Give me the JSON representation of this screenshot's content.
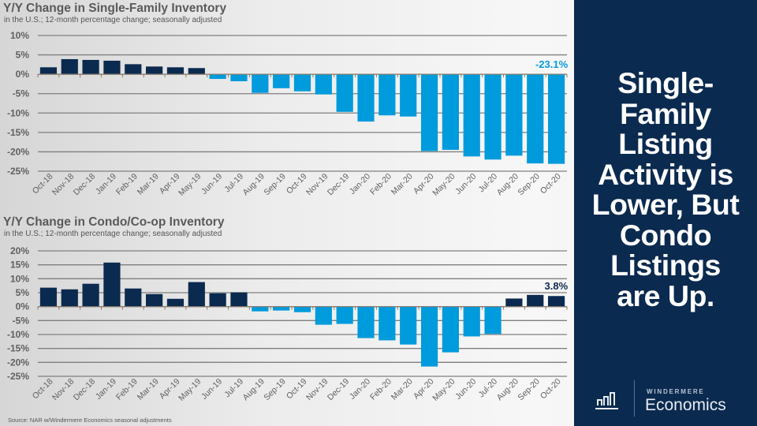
{
  "slide": {
    "headline": [
      "Single-",
      "Family",
      "Listing",
      "Activity is",
      "Lower, But",
      "Condo",
      "Listings",
      "are Up."
    ],
    "source": "Source: NAR w/Windermere Economics seasonal adjustments",
    "logo": {
      "brand": "WINDERMERE",
      "name": "Economics",
      "icon": "bar-chart-icon"
    },
    "colors": {
      "positive_bar": "#0b2a4f",
      "negative_bar": "#009bdc",
      "panel_bg": "#0b2a4f",
      "gridline": "#7f7f7f",
      "title_text": "#5a5a5a"
    }
  },
  "chart_data": [
    {
      "type": "bar",
      "title": "Y/Y Change in Single-Family Inventory",
      "subtitle": "in the U.S.; 12-month percentage change; seasonally adjusted",
      "xlabel": "",
      "ylabel": "",
      "ylim": [
        -25,
        10
      ],
      "yticks": [
        10,
        5,
        0,
        -5,
        -10,
        -15,
        -20,
        -25
      ],
      "ytick_labels": [
        "10%",
        "5%",
        "0%",
        "-5%",
        "-10%",
        "-15%",
        "-20%",
        "-25%"
      ],
      "grid": true,
      "categories": [
        "Oct-18",
        "Nov-18",
        "Dec-18",
        "Jan-19",
        "Feb-19",
        "Mar-19",
        "Apr-19",
        "May-19",
        "Jun-19",
        "Jul-19",
        "Aug-19",
        "Sep-19",
        "Oct-19",
        "Nov-19",
        "Dec-19",
        "Jan-20",
        "Feb-20",
        "Mar-20",
        "Apr-20",
        "May-20",
        "Jun-20",
        "Jul-20",
        "Aug-20",
        "Sep-20",
        "Oct-20"
      ],
      "values": [
        1.8,
        3.9,
        3.7,
        3.5,
        2.6,
        2.0,
        1.8,
        1.6,
        -1.2,
        -1.8,
        -4.8,
        -3.6,
        -4.4,
        -5.2,
        -9.7,
        -12.2,
        -10.6,
        -10.9,
        -19.8,
        -19.5,
        -21.2,
        -22.0,
        -21.0,
        -23.0,
        -23.1
      ],
      "annotation": {
        "category": "Oct-20",
        "text": "-23.1%",
        "color": "#009bdc"
      }
    },
    {
      "type": "bar",
      "title": "Y/Y Change in Condo/Co-op Inventory",
      "subtitle": "in the U.S.; 12-month percentage change; seasonally adjusted",
      "xlabel": "",
      "ylabel": "",
      "ylim": [
        -25,
        20
      ],
      "yticks": [
        20,
        15,
        10,
        5,
        0,
        -5,
        -10,
        -15,
        -20,
        -25
      ],
      "ytick_labels": [
        "20%",
        "15%",
        "10%",
        "5%",
        "0%",
        "-5%",
        "-10%",
        "-15%",
        "-20%",
        "-25%"
      ],
      "grid": true,
      "categories": [
        "Oct-18",
        "Nov-18",
        "Dec-18",
        "Jan-19",
        "Feb-19",
        "Mar-19",
        "Apr-19",
        "May-19",
        "Jun-19",
        "Jul-19",
        "Aug-19",
        "Sep-19",
        "Oct-19",
        "Nov-19",
        "Dec-19",
        "Jan-20",
        "Feb-20",
        "Mar-20",
        "Apr-20",
        "May-20",
        "Jun-20",
        "Jul-20",
        "Aug-20",
        "Sep-20",
        "Oct-20"
      ],
      "values": [
        6.8,
        6.2,
        8.2,
        15.8,
        6.5,
        4.5,
        2.8,
        8.8,
        4.8,
        5.1,
        -1.7,
        -1.4,
        -2.0,
        -6.5,
        -6.2,
        -11.3,
        -12.1,
        -13.6,
        -21.5,
        -16.4,
        -10.7,
        -9.8,
        2.9,
        4.2,
        3.8
      ],
      "annotation": {
        "category": "Oct-20",
        "text": "3.8%",
        "color": "#0b2a4f"
      }
    }
  ]
}
